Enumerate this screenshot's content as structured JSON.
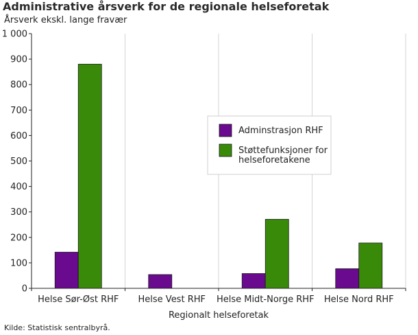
{
  "title": "Administrative årsverk for de regionale helseforetak",
  "subtitle": "Årsverk ekskl. lange fravær",
  "source": "Kilde: Statistisk sentralbyrå.",
  "chart_data": {
    "type": "bar",
    "title": "Administrative årsverk for de regionale helseforetak",
    "subtitle": "Årsverk ekskl. lange fravær",
    "xlabel": "Regionalt helseforetak",
    "ylabel": "",
    "categories": [
      "Helse Sør-Øst RHF",
      "Helse Vest RHF",
      "Helse Midt-Norge RHF",
      "Helse Nord RHF"
    ],
    "series": [
      {
        "name": "Adminstrasjon RHF",
        "color": "#6a0a8f",
        "values": [
          142,
          54,
          58,
          77
        ]
      },
      {
        "name": "Støttefunksjoner for helseforetakene",
        "color": "#3a8a0a",
        "values": [
          880,
          0,
          271,
          178
        ]
      }
    ],
    "ylim": [
      0,
      1000
    ],
    "yticks": [
      0,
      100,
      200,
      300,
      400,
      500,
      600,
      700,
      800,
      900,
      1000
    ],
    "ytick_labels": [
      "0",
      "100",
      "200",
      "300",
      "400",
      "500",
      "600",
      "700",
      "800",
      "900",
      "1 000"
    ],
    "grid": "vertical separators between categories",
    "legend": "center-right"
  }
}
